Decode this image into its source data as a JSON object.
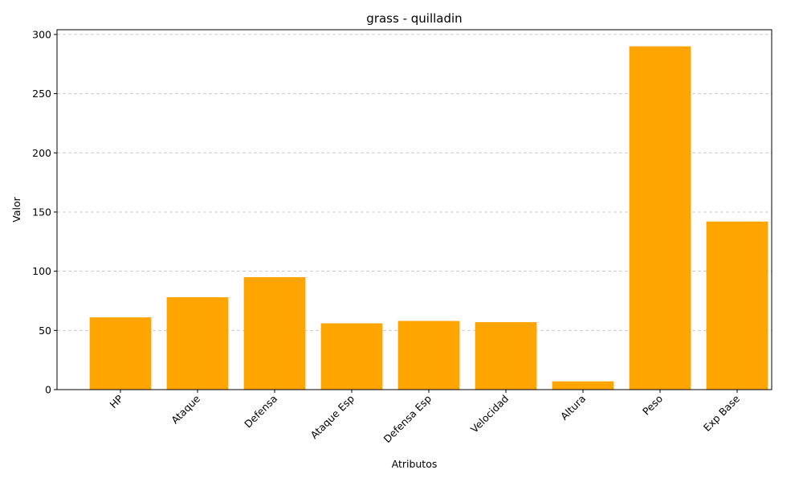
{
  "chart_data": {
    "type": "bar",
    "title": "grass - quilladin",
    "xlabel": "Atributos",
    "ylabel": "Valor",
    "categories": [
      "HP",
      "Ataque",
      "Defensa",
      "Ataque Esp",
      "Defensa Esp",
      "Velocidad",
      "Altura",
      "Peso",
      "Exp Base"
    ],
    "values": [
      61,
      78,
      95,
      56,
      58,
      57,
      7,
      290,
      142
    ],
    "ylim": [
      0,
      304
    ],
    "yticks": [
      0,
      50,
      100,
      150,
      200,
      250,
      300
    ],
    "grid": "y-dashed",
    "bar_color": "#FFA500",
    "grid_color": "#cccccc"
  }
}
